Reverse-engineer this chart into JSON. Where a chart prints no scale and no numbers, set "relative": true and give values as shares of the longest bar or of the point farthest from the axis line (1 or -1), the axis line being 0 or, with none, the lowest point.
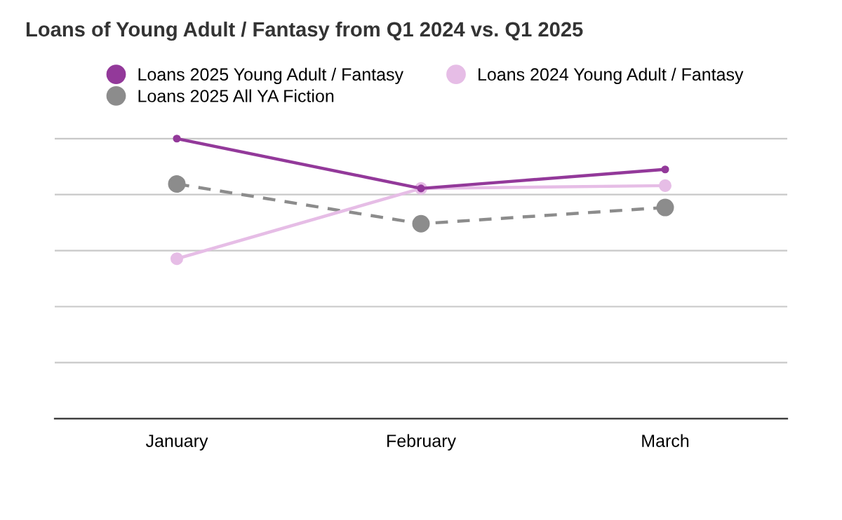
{
  "chart_data": {
    "type": "line",
    "title": "Loans of Young Adult / Fantasy from Q1 2024 vs. Q1 2025",
    "categories": [
      "January",
      "February",
      "March"
    ],
    "relative": true,
    "grid": "y",
    "legend": "top",
    "marker": "circle",
    "tick_labels": "x",
    "series": [
      {
        "name": "Loans 2025 Young Adult / Fantasy",
        "color": "#93399a",
        "values": [
          1,
          0.822,
          0.89
        ]
      },
      {
        "name": "Loans 2024 Young Adult / Fantasy",
        "color": "#e6bde6",
        "values": [
          0.571,
          0.822,
          0.832
        ]
      },
      {
        "name": "Loans 2025 All YA Fiction",
        "color": "#8c8c8c",
        "values": [
          0.838,
          0.696,
          0.754
        ],
        "line_style": "dashed"
      }
    ]
  }
}
